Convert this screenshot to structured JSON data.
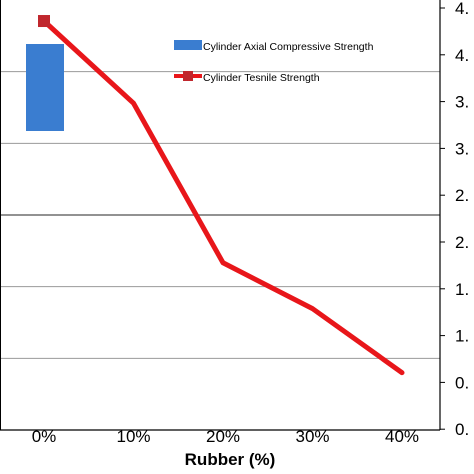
{
  "chart_data": {
    "type": "bar",
    "categories": [
      "0%",
      "10%",
      "20%",
      "30%",
      "40%"
    ],
    "xlabel": "Rubber (%)",
    "y2_ticks": [
      "4.",
      "4.",
      "3.",
      "3.",
      "2.",
      "2.",
      "1.",
      "1.",
      "0.",
      "0."
    ],
    "series": [
      {
        "name": "Cylinder Axial Compressive Strength",
        "type": "bar",
        "axis": "primary",
        "color": "#3a7dd0",
        "values": [
          null,
          null,
          null,
          null,
          null
        ]
      },
      {
        "name": "Cylinder Tesnile Strength",
        "type": "line",
        "axis": "secondary",
        "color": "#e8161a",
        "marker_color": "#c0272d",
        "values": [
          4.28,
          3.42,
          1.75,
          1.27,
          0.6
        ]
      }
    ],
    "secondary_axis": {
      "ylim": [
        0,
        4.5
      ],
      "side": "right"
    },
    "grid": true,
    "legend_position": "top-center"
  }
}
